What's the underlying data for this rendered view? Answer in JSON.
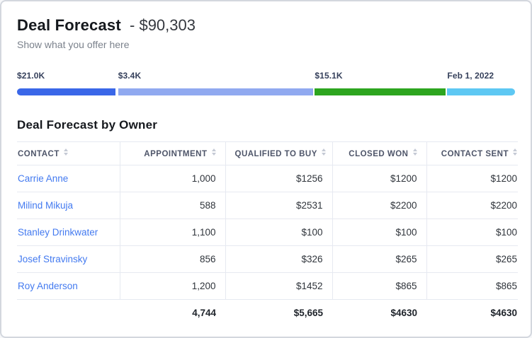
{
  "header": {
    "title": "Deal Forecast",
    "amount": "- $90,303",
    "subtitle": "Show what you offer here"
  },
  "progress": {
    "segments": [
      {
        "label": "$21.0K",
        "color": "#3a67e8",
        "start_pct": 0,
        "width_pct": 19.8
      },
      {
        "label": "$3.4K",
        "color": "#90a9f0",
        "start_pct": 20.3,
        "width_pct": 39.2
      },
      {
        "label": "$15.1K",
        "color": "#2da51f",
        "start_pct": 59.8,
        "width_pct": 26.2
      },
      {
        "label": "Feb 1, 2022",
        "color": "#5ec8f3",
        "start_pct": 86.4,
        "width_pct": 13.6
      }
    ]
  },
  "section": {
    "title": "Deal Forecast by Owner"
  },
  "table": {
    "columns": [
      "CONTACT",
      "APPOINTMENT",
      "QUALIFIED TO BUY",
      "CLOSED WON",
      "CONTACT SENT"
    ],
    "rows": [
      {
        "contact": "Carrie Anne",
        "appointment": "1,000",
        "qualified_to_buy": "$1256",
        "closed_won": "$1200",
        "contact_sent": "$1200"
      },
      {
        "contact": "Milind Mikuja",
        "appointment": "588",
        "qualified_to_buy": "$2531",
        "closed_won": "$2200",
        "contact_sent": "$2200"
      },
      {
        "contact": "Stanley Drinkwater",
        "appointment": "1,100",
        "qualified_to_buy": "$100",
        "closed_won": "$100",
        "contact_sent": "$100"
      },
      {
        "contact": "Josef Stravinsky",
        "appointment": "856",
        "qualified_to_buy": "$326",
        "closed_won": "$265",
        "contact_sent": "$265"
      },
      {
        "contact": "Roy Anderson",
        "appointment": "1,200",
        "qualified_to_buy": "$1452",
        "closed_won": "$865",
        "contact_sent": "$865"
      }
    ],
    "totals": {
      "appointment": "4,744",
      "qualified_to_buy": "$5,665",
      "closed_won": "$4630",
      "contact_sent": "$4630"
    }
  }
}
